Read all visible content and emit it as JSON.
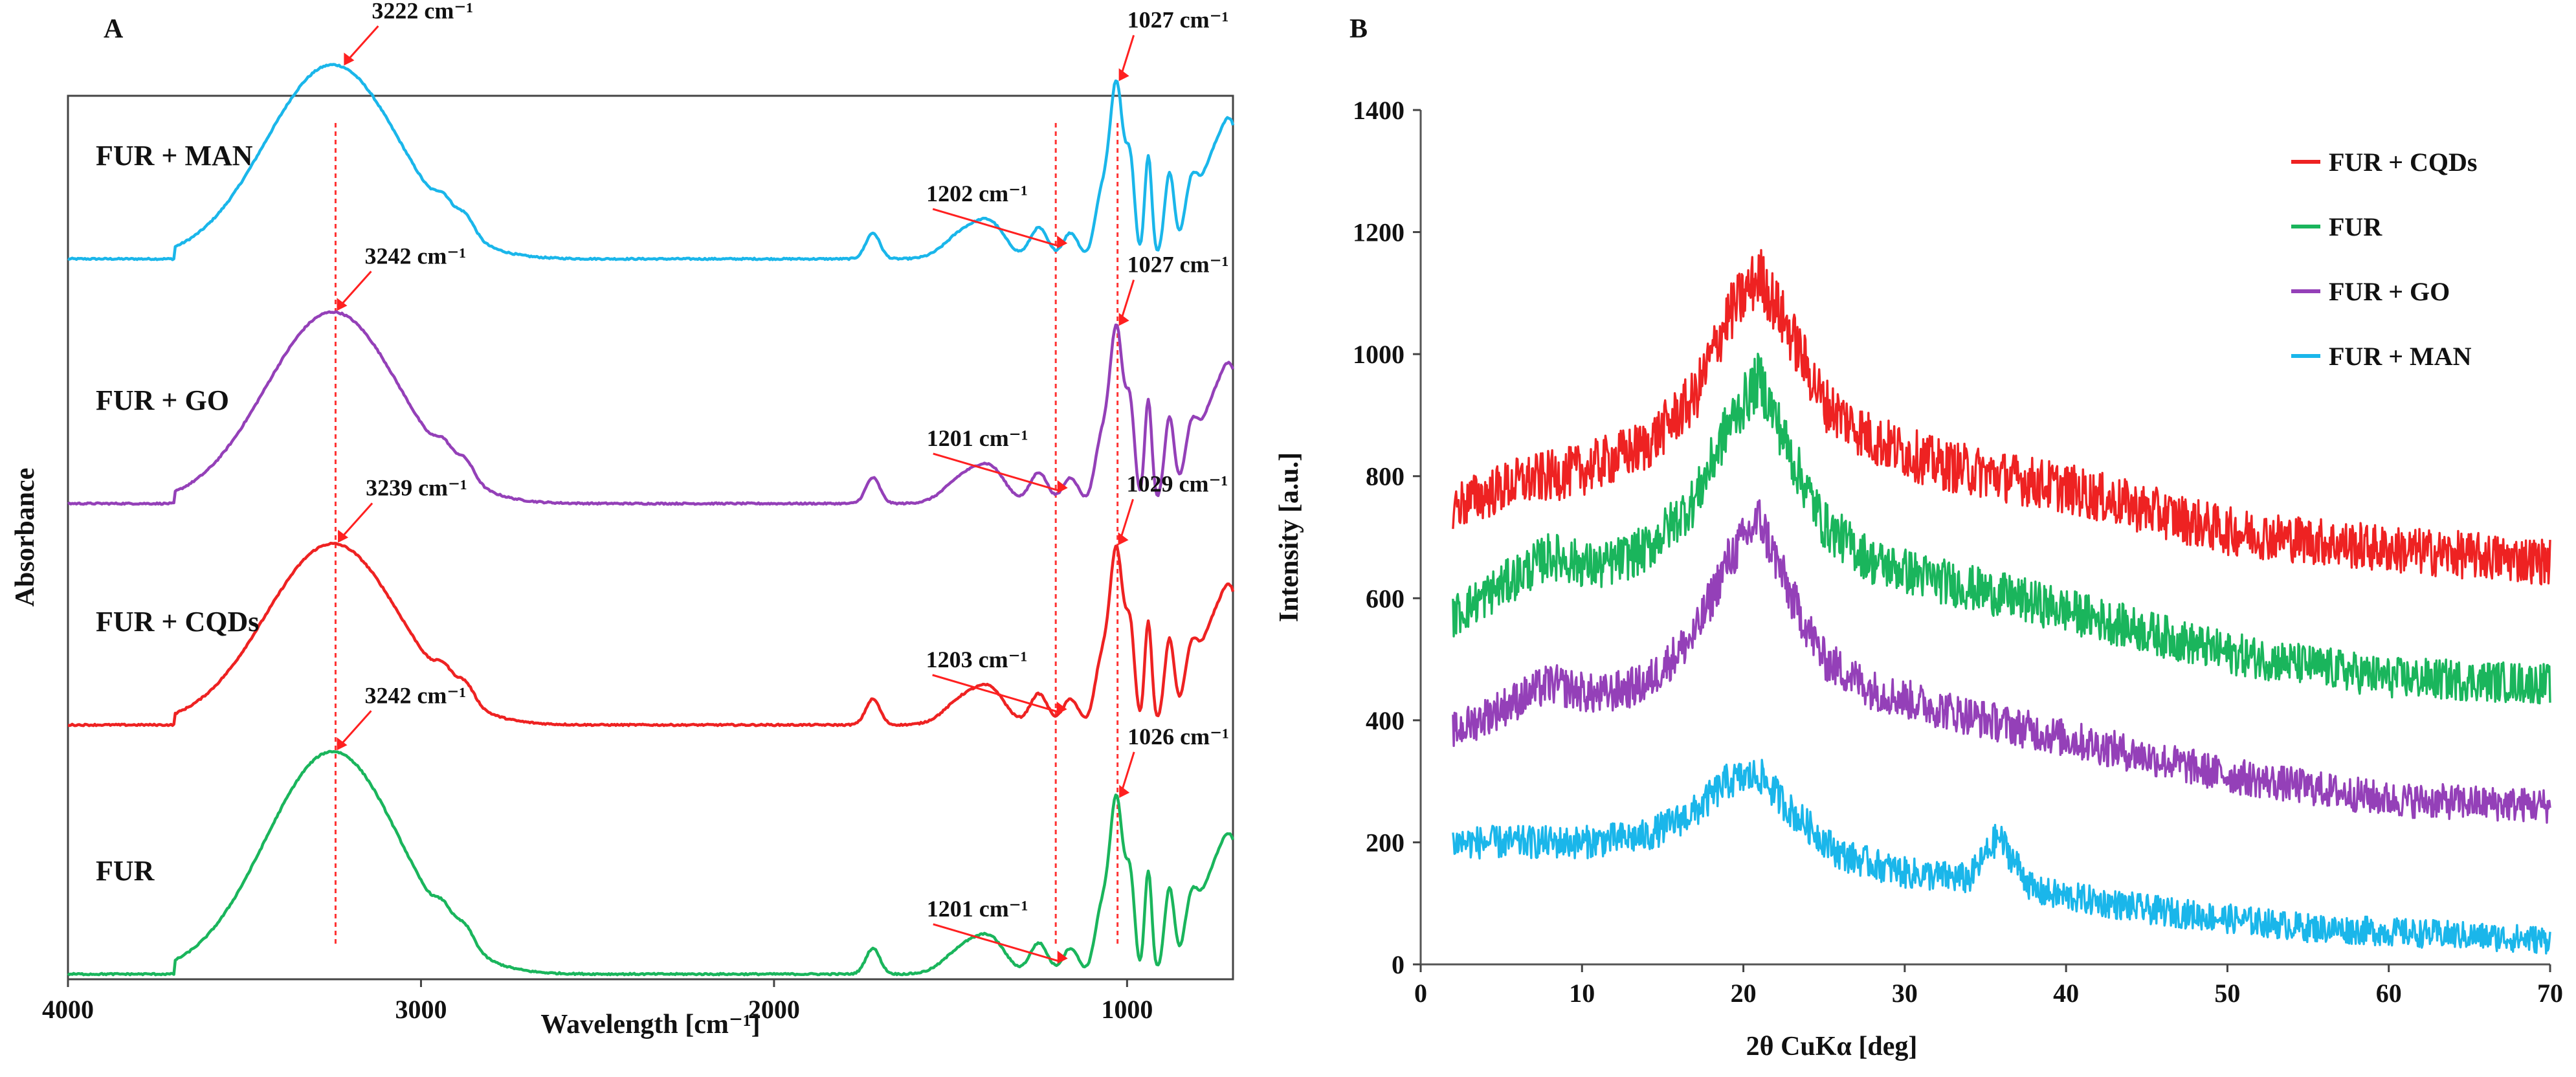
{
  "chart_data": [
    {
      "panel": "A",
      "type": "line",
      "title": "",
      "xlabel": "Wavelength [cm⁻¹]",
      "ylabel": "Absorbance",
      "xlim": [
        4000,
        700
      ],
      "x_ticks": [
        "4000",
        "3000",
        "2000",
        "1000"
      ],
      "x_tick_values": [
        4000,
        3000,
        2000,
        1000
      ],
      "y_ticks": [],
      "series": [
        {
          "name": "FUR + MAN",
          "color": "#1ab6ea",
          "offset": 3.0
        },
        {
          "name": "FUR + GO",
          "color": "#9440b8",
          "offset": 2.0
        },
        {
          "name": "FUR + CQDs",
          "color": "#ee2222",
          "offset": 1.0
        },
        {
          "name": "FUR",
          "color": "#1ab55c",
          "offset": 0.0
        }
      ],
      "peak_annotations": [
        {
          "series": "FUR + MAN",
          "x": 3222,
          "label": "3222 cm⁻¹"
        },
        {
          "series": "FUR + MAN",
          "x": 1202,
          "label": "1202 cm⁻¹"
        },
        {
          "series": "FUR + MAN",
          "x": 1027,
          "label": "1027 cm⁻¹"
        },
        {
          "series": "FUR + GO",
          "x": 3242,
          "label": "3242 cm⁻¹"
        },
        {
          "series": "FUR + GO",
          "x": 1201,
          "label": "1201 cm⁻¹"
        },
        {
          "series": "FUR + GO",
          "x": 1027,
          "label": "1027 cm⁻¹"
        },
        {
          "series": "FUR + CQDs",
          "x": 3239,
          "label": "3239 cm⁻¹"
        },
        {
          "series": "FUR + CQDs",
          "x": 1203,
          "label": "1203 cm⁻¹"
        },
        {
          "series": "FUR + CQDs",
          "x": 1029,
          "label": "1029 cm⁻¹"
        },
        {
          "series": "FUR",
          "x": 3242,
          "label": "3242 cm⁻¹"
        },
        {
          "series": "FUR",
          "x": 1201,
          "label": "1201 cm⁻¹"
        },
        {
          "series": "FUR",
          "x": 1026,
          "label": "1026 cm⁻¹"
        }
      ],
      "guide_lines_x": [
        3242,
        1202,
        1027
      ]
    },
    {
      "panel": "B",
      "type": "line",
      "title": "",
      "xlabel": "2θ CuKα [deg]",
      "ylabel": "Intensity [a.u.]",
      "xlim": [
        0,
        70
      ],
      "ylim": [
        0,
        1400
      ],
      "x_ticks": [
        0,
        10,
        20,
        30,
        40,
        50,
        60,
        70
      ],
      "y_ticks": [
        0,
        200,
        400,
        600,
        800,
        1000,
        1200,
        1400
      ],
      "legend_position": "top-right",
      "series": [
        {
          "name": "FUR + CQDs",
          "color": "#ee2222",
          "x": [
            2,
            6,
            10,
            14,
            17,
            19,
            21,
            23,
            25,
            28,
            32,
            40,
            50,
            60,
            70
          ],
          "y": [
            750,
            790,
            810,
            850,
            930,
            1060,
            1130,
            1030,
            920,
            860,
            820,
            780,
            710,
            680,
            660
          ]
        },
        {
          "name": "FUR",
          "color": "#1ab55c",
          "x": [
            2,
            5,
            8,
            11,
            14,
            17,
            19,
            21,
            23,
            25,
            28,
            32,
            40,
            50,
            60,
            70
          ],
          "y": [
            570,
            620,
            670,
            650,
            680,
            760,
            880,
            960,
            830,
            720,
            660,
            630,
            580,
            510,
            470,
            460
          ]
        },
        {
          "name": "FUR + GO",
          "color": "#9440b8",
          "x": [
            2,
            5,
            8,
            11,
            14,
            17,
            19,
            21,
            23,
            25,
            28,
            32,
            40,
            50,
            60,
            70
          ],
          "y": [
            380,
            420,
            460,
            440,
            460,
            540,
            660,
            730,
            600,
            500,
            450,
            420,
            370,
            310,
            270,
            260
          ]
        },
        {
          "name": "FUR + MAN",
          "color": "#1ab6ea",
          "x": [
            2,
            6,
            10,
            14,
            17,
            19,
            21,
            23,
            26,
            30,
            34,
            35.8,
            38,
            45,
            55,
            70
          ],
          "y": [
            200,
            200,
            200,
            210,
            250,
            300,
            310,
            250,
            180,
            150,
            140,
            210,
            120,
            90,
            60,
            40
          ]
        }
      ]
    }
  ]
}
